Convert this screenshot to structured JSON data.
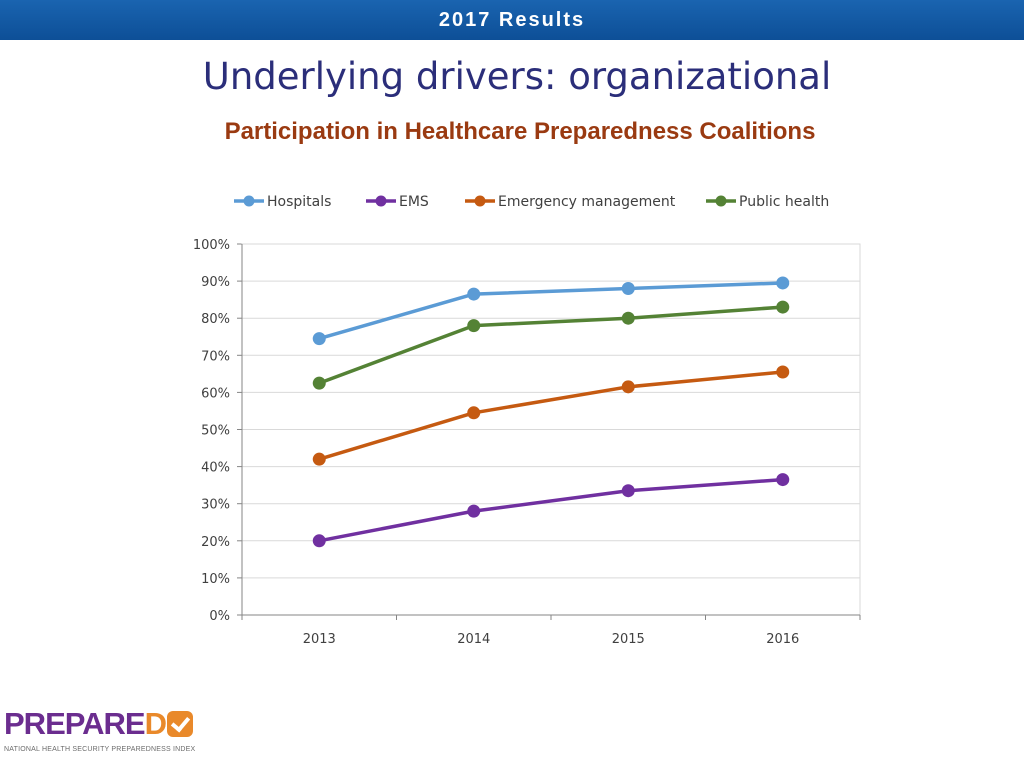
{
  "banner": {
    "text": "2017 Results"
  },
  "slide": {
    "title": "Underlying drivers: organizational",
    "subtitle": "Participation in Healthcare Preparedness Coalitions"
  },
  "logo": {
    "wordmark": "PREPARED",
    "tagline": "NATIONAL HEALTH SECURITY PREPAREDNESS INDEX",
    "colors": {
      "text": "#6b2d8f",
      "check": "#e9892a"
    }
  },
  "chart_data": {
    "type": "line",
    "title": "",
    "xlabel": "",
    "ylabel": "",
    "categories": [
      "2013",
      "2014",
      "2015",
      "2016"
    ],
    "ylim": [
      0,
      100
    ],
    "yticks": [
      "0%",
      "10%",
      "20%",
      "30%",
      "40%",
      "50%",
      "60%",
      "70%",
      "80%",
      "90%",
      "100%"
    ],
    "grid": true,
    "legend_position": "top",
    "series": [
      {
        "name": "Hospitals",
        "color": "#5b9bd5",
        "values": [
          74.5,
          86.5,
          88,
          89.5
        ]
      },
      {
        "name": "EMS",
        "color": "#7030a0",
        "values": [
          20,
          28,
          33.5,
          36.5
        ]
      },
      {
        "name": "Emergency management",
        "color": "#c55a11",
        "values": [
          42,
          54.5,
          61.5,
          65.5
        ]
      },
      {
        "name": "Public health",
        "color": "#548235",
        "values": [
          62.5,
          78,
          80,
          83
        ]
      }
    ]
  }
}
